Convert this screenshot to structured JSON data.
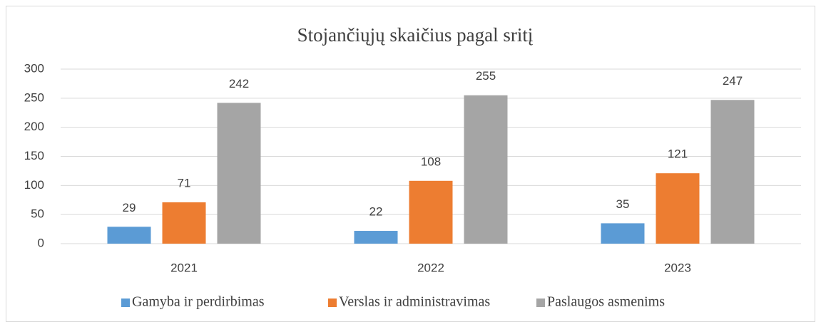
{
  "chart_data": {
    "type": "bar",
    "title": "Stojančiųjų skaičius pagal sritį",
    "categories": [
      "2021",
      "2022",
      "2023"
    ],
    "series": [
      {
        "name": "Gamyba ir perdirbimas",
        "color": "#5b9bd5",
        "values": [
          29,
          22,
          35
        ]
      },
      {
        "name": "Verslas ir administravimas",
        "color": "#ed7d31",
        "values": [
          71,
          108,
          121
        ]
      },
      {
        "name": "Paslaugos asmenims",
        "color": "#a5a5a5",
        "values": [
          242,
          255,
          247
        ]
      }
    ],
    "ylim": [
      0,
      300
    ],
    "yticks": [
      0,
      50,
      100,
      150,
      200,
      250,
      300
    ],
    "grid": true,
    "legend": "bottom"
  }
}
